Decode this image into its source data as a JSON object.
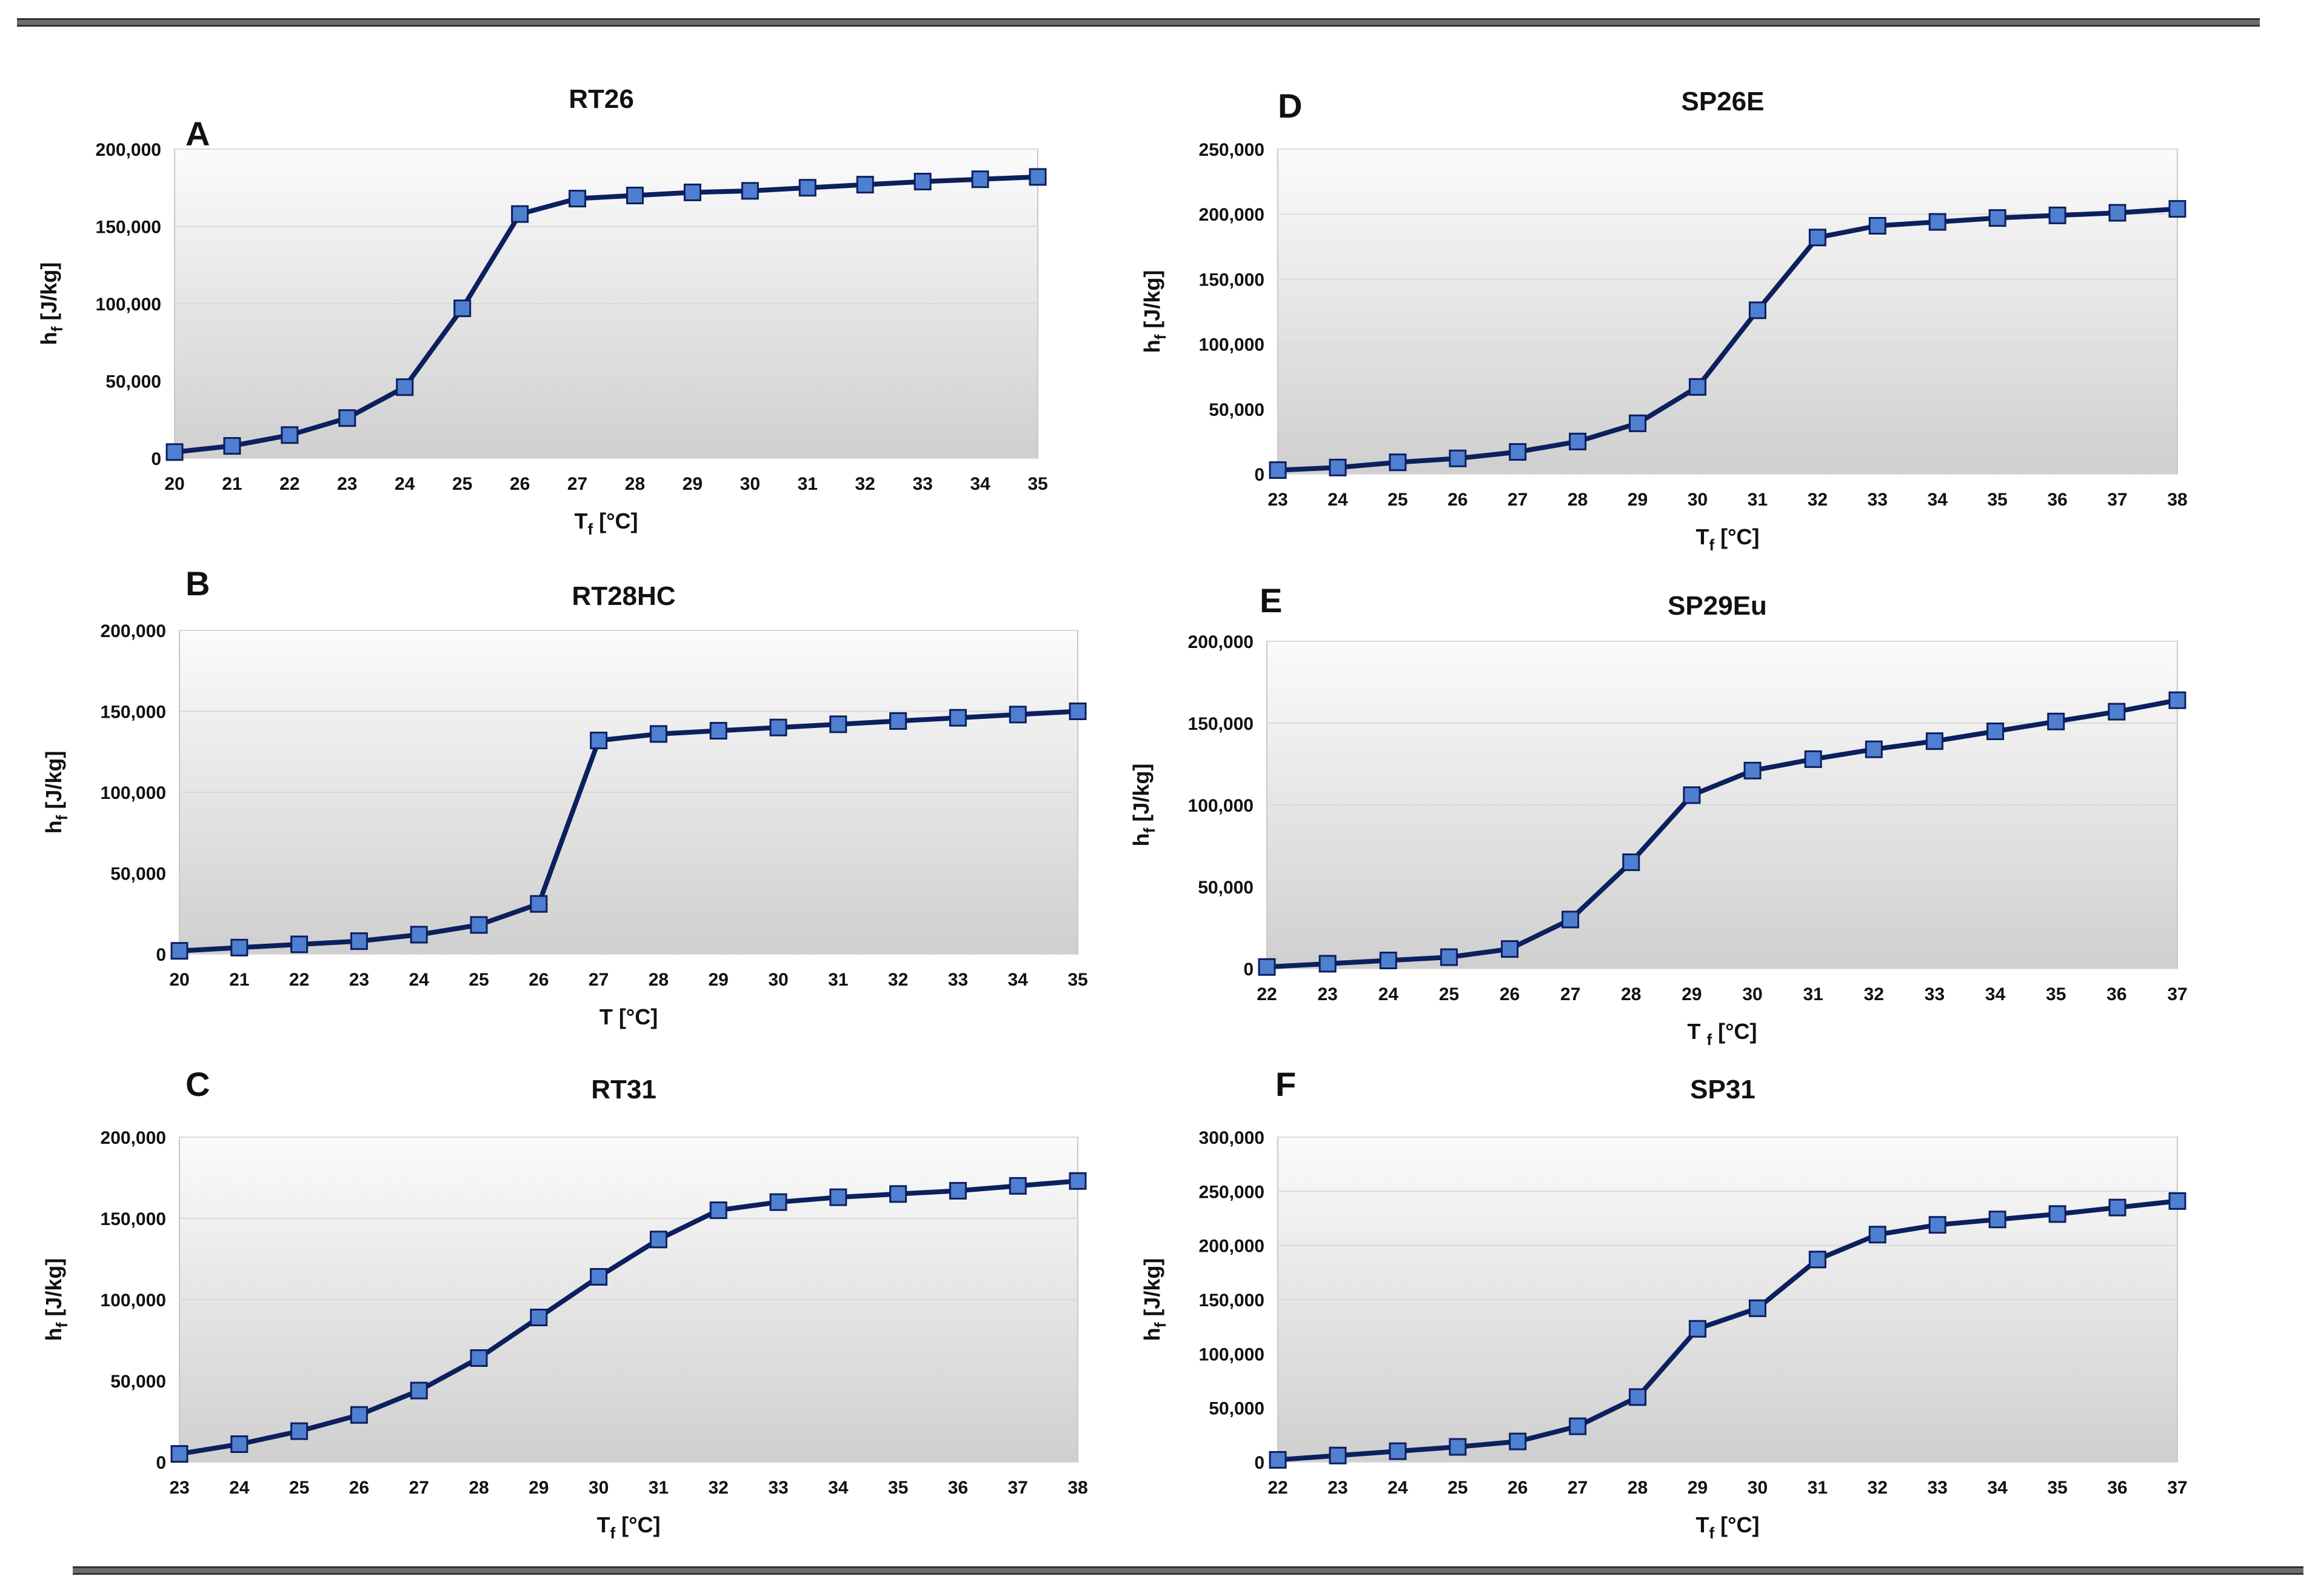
{
  "colors": {
    "line": "#0c1f5e",
    "marker": "#4f7fd0",
    "plot_top": "#fbfbfb",
    "plot_bottom": "#cfcfcf"
  },
  "chart_data": [
    {
      "panel": "A",
      "type": "line",
      "title": "RT26",
      "xlabel": "T",
      "xlabel_sub": "f",
      "xlabel_unit": "[°C]",
      "ylabel": "h",
      "ylabel_sub": "f",
      "ylabel_unit": "[J/kg]",
      "x": [
        20,
        21,
        22,
        23,
        24,
        25,
        26,
        27,
        28,
        29,
        30,
        31,
        32,
        33,
        34,
        35
      ],
      "values": [
        4000,
        8000,
        15000,
        26000,
        46000,
        97000,
        158000,
        168000,
        170000,
        172000,
        173000,
        175000,
        177000,
        179000,
        180500,
        182000
      ],
      "ylim": [
        0,
        200000
      ],
      "yticks": [
        0,
        50000,
        100000,
        150000,
        200000
      ],
      "yticklabels": [
        "0",
        "50,000",
        "100,000",
        "150,000",
        "200,000"
      ]
    },
    {
      "panel": "B",
      "type": "line",
      "title": "RT28HC",
      "xlabel": "T",
      "xlabel_sub": "",
      "xlabel_unit": "[°C]",
      "ylabel": "h",
      "ylabel_sub": "f",
      "ylabel_unit": "[J/kg]",
      "x": [
        20,
        21,
        22,
        23,
        24,
        25,
        26,
        27,
        28,
        29,
        30,
        31,
        32,
        33,
        34,
        35
      ],
      "values": [
        2000,
        4000,
        6000,
        8000,
        12000,
        18000,
        31000,
        132000,
        136000,
        138000,
        140000,
        142000,
        144000,
        146000,
        148000,
        150000
      ],
      "ylim": [
        0,
        200000
      ],
      "yticks": [
        0,
        50000,
        100000,
        150000,
        200000
      ],
      "yticklabels": [
        "0",
        "50,000",
        "100,000",
        "150,000",
        "200,000"
      ]
    },
    {
      "panel": "C",
      "type": "line",
      "title": "RT31",
      "xlabel": "T",
      "xlabel_sub": "f",
      "xlabel_unit": "[°C]",
      "ylabel": "h",
      "ylabel_sub": "f",
      "ylabel_unit": "[J/kg]",
      "x": [
        23,
        24,
        25,
        26,
        27,
        28,
        29,
        30,
        31,
        32,
        33,
        34,
        35,
        36,
        37,
        38
      ],
      "values": [
        5000,
        11000,
        19000,
        29000,
        44000,
        64000,
        89000,
        114000,
        137000,
        155000,
        160000,
        163000,
        165000,
        167000,
        170000,
        173000
      ],
      "ylim": [
        0,
        200000
      ],
      "yticks": [
        0,
        50000,
        100000,
        150000,
        200000
      ],
      "yticklabels": [
        "0",
        "50,000",
        "100,000",
        "150,000",
        "200,000"
      ]
    },
    {
      "panel": "D",
      "type": "line",
      "title": "SP26E",
      "xlabel": "T",
      "xlabel_sub": "f",
      "xlabel_unit": "[°C]",
      "ylabel": "h",
      "ylabel_sub": "f",
      "ylabel_unit": "[J/kg]",
      "x": [
        23,
        24,
        25,
        26,
        27,
        28,
        29,
        30,
        31,
        32,
        33,
        34,
        35,
        36,
        37,
        38
      ],
      "values": [
        3000,
        5000,
        9000,
        12000,
        17000,
        25000,
        39000,
        67000,
        126000,
        182000,
        191000,
        194000,
        197000,
        199000,
        201000,
        204000
      ],
      "ylim": [
        0,
        250000
      ],
      "yticks": [
        0,
        50000,
        100000,
        150000,
        200000,
        250000
      ],
      "yticklabels": [
        "0",
        "50,000",
        "100,000",
        "150,000",
        "200,000",
        "250,000"
      ]
    },
    {
      "panel": "E",
      "type": "line",
      "title": "SP29Eu",
      "xlabel": "T ",
      "xlabel_sub": "f",
      "xlabel_unit": "[°C]",
      "ylabel": "h",
      "ylabel_sub": "f",
      "ylabel_unit": "[J/kg]",
      "x": [
        22,
        23,
        24,
        25,
        26,
        27,
        28,
        29,
        30,
        31,
        32,
        33,
        34,
        35,
        36,
        37
      ],
      "values": [
        1000,
        3000,
        5000,
        7000,
        12000,
        30000,
        65000,
        106000,
        121000,
        128000,
        134000,
        139000,
        145000,
        151000,
        157000,
        164000
      ],
      "ylim": [
        0,
        200000
      ],
      "yticks": [
        0,
        50000,
        100000,
        150000,
        200000
      ],
      "yticklabels": [
        "0",
        "50,000",
        "100,000",
        "150,000",
        "200,000"
      ]
    },
    {
      "panel": "F",
      "type": "line",
      "title": "SP31",
      "xlabel": "T",
      "xlabel_sub": "f",
      "xlabel_unit": "[°C]",
      "ylabel": "h",
      "ylabel_sub": "f",
      "ylabel_unit": "[J/kg]",
      "x": [
        22,
        23,
        24,
        25,
        26,
        27,
        28,
        29,
        30,
        31,
        32,
        33,
        34,
        35,
        36,
        37
      ],
      "values": [
        2000,
        6000,
        10000,
        14000,
        19000,
        33000,
        60000,
        123000,
        142000,
        187000,
        210000,
        219000,
        224000,
        229000,
        235000,
        241000
      ],
      "ylim": [
        0,
        300000
      ],
      "yticks": [
        0,
        50000,
        100000,
        150000,
        200000,
        250000,
        300000
      ],
      "yticklabels": [
        "0",
        "50,000",
        "100,000",
        "150,000",
        "200,000",
        "250,000",
        "300,000"
      ]
    }
  ]
}
